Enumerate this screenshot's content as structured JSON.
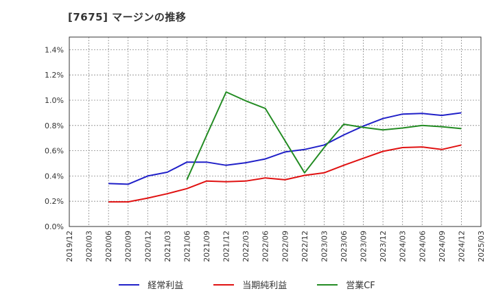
{
  "chart_data": {
    "type": "line",
    "title": "[7675]  マージンの推移",
    "x": [
      "2019/12",
      "2020/03",
      "2020/06",
      "2020/09",
      "2020/12",
      "2021/03",
      "2021/06",
      "2021/09",
      "2021/12",
      "2022/03",
      "2022/06",
      "2022/09",
      "2022/12",
      "2023/03",
      "2023/06",
      "2023/09",
      "2023/12",
      "2024/03",
      "2024/06",
      "2024/09",
      "2024/12",
      "2025/03"
    ],
    "ylim": [
      0,
      1.5
    ],
    "yticks": [
      "0.0%",
      "0.2%",
      "0.4%",
      "0.6%",
      "0.8%",
      "1.0%",
      "1.2%",
      "1.4%"
    ],
    "ytick_values": [
      0,
      0.2,
      0.4,
      0.6,
      0.8,
      1.0,
      1.2,
      1.4
    ],
    "grid": true,
    "legend_position": "bottom",
    "series": [
      {
        "name": "経常利益",
        "color": "#1f1fc8",
        "values": [
          null,
          null,
          0.34,
          0.335,
          0.4,
          0.43,
          0.51,
          0.51,
          0.485,
          0.505,
          0.535,
          0.59,
          0.61,
          0.645,
          0.725,
          0.795,
          0.855,
          0.89,
          0.895,
          0.88,
          0.9,
          null
        ]
      },
      {
        "name": "当期純利益",
        "color": "#e01010",
        "values": [
          null,
          null,
          0.195,
          0.195,
          0.225,
          0.26,
          0.3,
          0.36,
          0.355,
          0.36,
          0.385,
          0.37,
          0.405,
          0.425,
          0.485,
          0.54,
          0.595,
          0.625,
          0.63,
          0.61,
          0.645,
          null
        ]
      },
      {
        "name": "営業CF",
        "color": "#228b22",
        "values": [
          null,
          null,
          null,
          null,
          null,
          null,
          0.37,
          0.72,
          1.065,
          0.995,
          0.935,
          0.68,
          0.425,
          0.625,
          0.81,
          0.785,
          0.765,
          0.78,
          0.8,
          0.79,
          0.775,
          null
        ]
      }
    ]
  }
}
